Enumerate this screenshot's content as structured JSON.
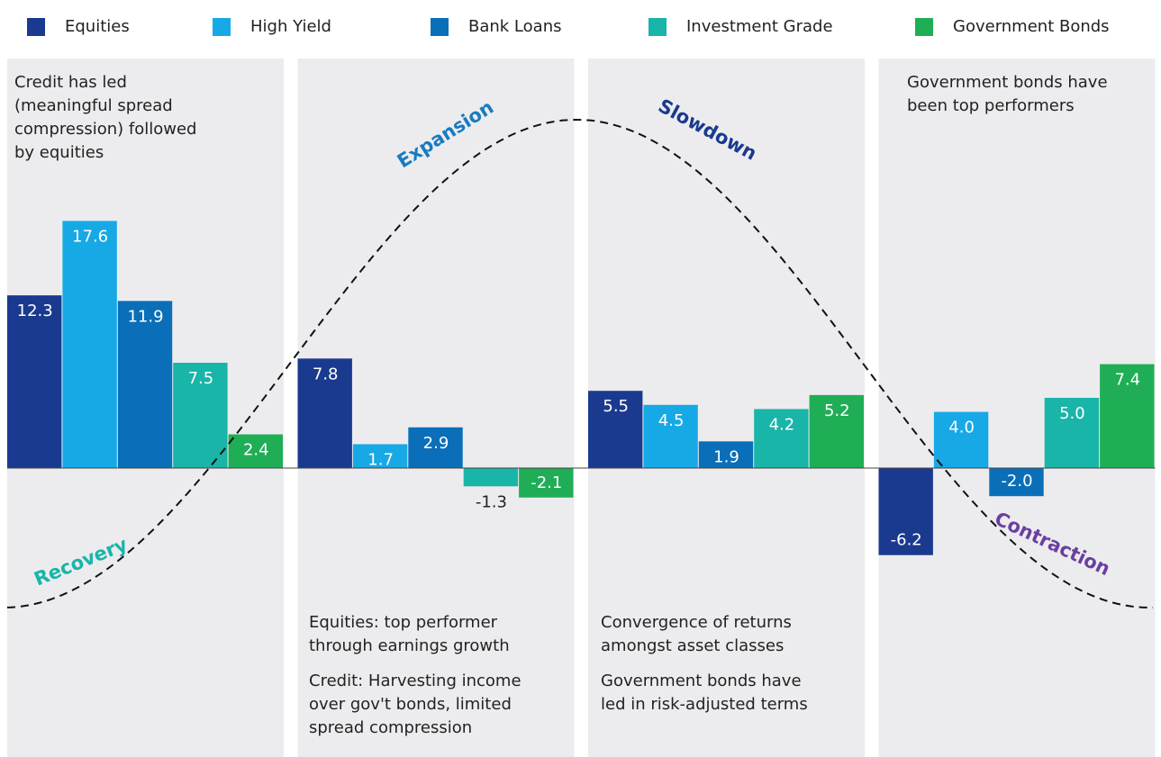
{
  "chart_data": {
    "type": "bar",
    "categories": [
      "Recovery",
      "Expansion",
      "Slowdown",
      "Contraction"
    ],
    "category_colors": [
      "#19b5a8",
      "#1a7ac0",
      "#1a3a8f",
      "#6a3fa0"
    ],
    "series": [
      {
        "name": "Equities",
        "color": "#1a3a8f",
        "values": [
          12.3,
          7.8,
          5.5,
          -6.2
        ],
        "value_labels": [
          "12.3",
          "7.8",
          "5.5",
          "-6.2"
        ]
      },
      {
        "name": "High Yield",
        "color": "#17a9e6",
        "values": [
          17.6,
          1.7,
          4.5,
          4.0
        ],
        "value_labels": [
          "17.6",
          "1.7",
          "4.5",
          "4.0"
        ]
      },
      {
        "name": "Bank Loans",
        "color": "#0a6fb8",
        "values": [
          11.9,
          2.9,
          1.9,
          -2.0
        ],
        "value_labels": [
          "11.9",
          "2.9",
          "1.9",
          "-2.0"
        ]
      },
      {
        "name": "Investment Grade",
        "color": "#19b5a8",
        "values": [
          7.5,
          -1.3,
          4.2,
          5.0
        ],
        "value_labels": [
          "7.5",
          "-1.3",
          "4.2",
          "5.0"
        ]
      },
      {
        "name": "Government Bonds",
        "color": "#1fae56",
        "values": [
          2.4,
          -2.1,
          5.2,
          7.4
        ],
        "value_labels": [
          "2.4",
          "-2.1",
          "5.2",
          "7.4"
        ]
      }
    ],
    "ylim": [
      -20,
      30
    ],
    "annotations": [
      [
        "Credit has led",
        "(meaningful spread",
        "compression) followed",
        "by equities"
      ],
      [
        "Equities: top performer",
        "through earnings growth"
      ],
      [
        "Credit: Harvesting income",
        "over gov't bonds, limited",
        "spread compression"
      ],
      [
        "Convergence of returns",
        "amongst asset classes"
      ],
      [
        "Government bonds have",
        "led in risk-adjusted terms"
      ],
      [
        "Government bonds have",
        "been top performers"
      ]
    ]
  }
}
